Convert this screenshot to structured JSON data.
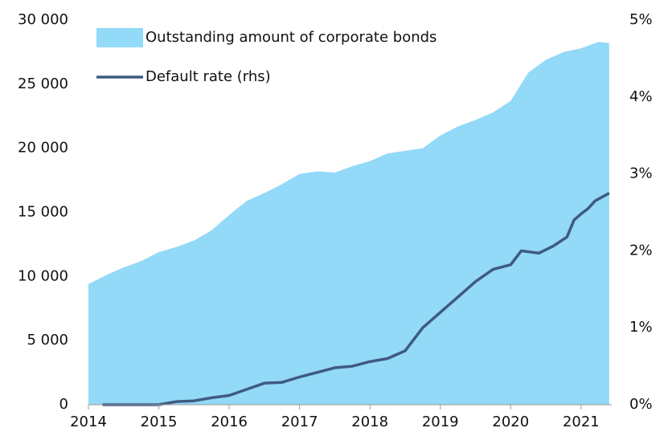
{
  "chart_data": {
    "type": "area-line",
    "xlim": [
      2014,
      2021.55
    ],
    "xticks": [
      2014,
      2015,
      2016,
      2017,
      2018,
      2019,
      2020,
      2021
    ],
    "ylim": [
      0,
      30000
    ],
    "yticks": [
      0,
      {
        "value": 5000,
        "label": "5 000"
      },
      {
        "value": 10000,
        "label": "10 000"
      },
      {
        "value": 15000,
        "label": "15 000"
      },
      {
        "value": 20000,
        "label": "20 000"
      },
      {
        "value": 25000,
        "label": "25 000"
      },
      {
        "value": 30000,
        "label": "30 000"
      }
    ],
    "y2lim": [
      0,
      5
    ],
    "y2ticks": [
      {
        "value": 0,
        "label": "0%"
      },
      {
        "value": 1,
        "label": "1%"
      },
      {
        "value": 2,
        "label": "2%"
      },
      {
        "value": 3,
        "label": "3%"
      },
      {
        "value": 4,
        "label": "4%"
      },
      {
        "value": 5,
        "label": "5%"
      }
    ],
    "legend": "top-left",
    "series": [
      {
        "name": "Outstanding amount of corporate bonds",
        "kind": "area",
        "color": "#93d9f8",
        "x": [
          2014.0,
          2014.25,
          2014.5,
          2014.75,
          2015.0,
          2015.25,
          2015.5,
          2015.75,
          2016.0,
          2016.25,
          2016.5,
          2016.75,
          2017.0,
          2017.25,
          2017.5,
          2017.75,
          2018.0,
          2018.25,
          2018.5,
          2018.75,
          2019.0,
          2019.25,
          2019.5,
          2019.75,
          2020.0,
          2020.25,
          2020.5,
          2020.75,
          2021.0,
          2021.25,
          2021.4
        ],
        "values": [
          9400,
          10100,
          10700,
          11200,
          11900,
          12300,
          12800,
          13600,
          14800,
          15900,
          16500,
          17200,
          18000,
          18200,
          18100,
          18600,
          19000,
          19600,
          19800,
          20000,
          21000,
          21700,
          22200,
          22800,
          23700,
          25900,
          26900,
          27500,
          27800,
          28300,
          28200
        ]
      },
      {
        "name": "Default rate (rhs)",
        "kind": "line",
        "axis": "y2",
        "color": "#3f5a82",
        "x": [
          2014.2,
          2014.5,
          2015.0,
          2015.25,
          2015.5,
          2015.75,
          2016.0,
          2016.25,
          2016.5,
          2016.75,
          2017.0,
          2017.25,
          2017.5,
          2017.75,
          2018.0,
          2018.25,
          2018.5,
          2018.75,
          2019.0,
          2019.25,
          2019.5,
          2019.75,
          2020.0,
          2020.15,
          2020.4,
          2020.6,
          2020.8,
          2020.9,
          2021.0,
          2021.1,
          2021.2,
          2021.4
        ],
        "values": [
          0.0,
          0.0,
          0.0,
          0.04,
          0.05,
          0.09,
          0.12,
          0.2,
          0.28,
          0.29,
          0.36,
          0.42,
          0.48,
          0.5,
          0.56,
          0.6,
          0.7,
          1.0,
          1.2,
          1.4,
          1.6,
          1.76,
          1.82,
          2.0,
          1.97,
          2.06,
          2.18,
          2.4,
          2.48,
          2.55,
          2.65,
          2.75
        ]
      }
    ]
  }
}
